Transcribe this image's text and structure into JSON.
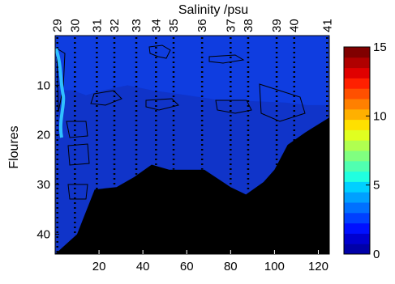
{
  "chart_data": {
    "type": "heatmap",
    "top_axis": {
      "label": "Salinity /psu",
      "ticks": [
        {
          "label": "29",
          "x": 1,
          "color": "#ff2020"
        },
        {
          "label": "30",
          "x": 9,
          "color": "#ff2020"
        },
        {
          "label": "31",
          "x": 19,
          "color": "#ff2020"
        },
        {
          "label": "32",
          "x": 27,
          "color": "#ff20ff"
        },
        {
          "label": "33",
          "x": 37,
          "color": "#ff20ff"
        },
        {
          "label": "34",
          "x": 46,
          "color": "#ff20ff"
        },
        {
          "label": "35",
          "x": 54,
          "color": "#20d020"
        },
        {
          "label": "36",
          "x": 67,
          "color": "#20d020"
        },
        {
          "label": "37",
          "x": 80,
          "color": "#20d020"
        },
        {
          "label": "38",
          "x": 88,
          "color": "#2020ff"
        },
        {
          "label": "39",
          "x": 101,
          "color": "#2020ff"
        },
        {
          "label": "40",
          "x": 109,
          "color": "#2020ff"
        },
        {
          "label": "41",
          "x": 124,
          "color": "#000000"
        }
      ]
    },
    "x_axis": {
      "label": "",
      "ticks": [
        20,
        40,
        60,
        80,
        100,
        120
      ],
      "range": [
        0,
        125
      ]
    },
    "y_axis": {
      "label": "Floures",
      "ticks": [
        10,
        20,
        30,
        40
      ],
      "range": [
        0,
        44
      ],
      "reversed": true
    },
    "colorbar": {
      "ticks": [
        0,
        5,
        10,
        15
      ],
      "range": [
        0,
        15
      ],
      "colors": [
        "#0000a8",
        "#0000d0",
        "#0010ff",
        "#0040ff",
        "#0070ff",
        "#00a0ff",
        "#00d0ff",
        "#20ffe0",
        "#50ffb0",
        "#80ff80",
        "#b0ff50",
        "#e0ff20",
        "#ffe000",
        "#ffb000",
        "#ff8000",
        "#ff5000",
        "#ff2000",
        "#e00000",
        "#b00000",
        "#800000"
      ]
    },
    "bottom_profile": [
      [
        0,
        44
      ],
      [
        5,
        42
      ],
      [
        10,
        40
      ],
      [
        18,
        31
      ],
      [
        28,
        30.5
      ],
      [
        36,
        28.5
      ],
      [
        44,
        26
      ],
      [
        52,
        27
      ],
      [
        68,
        27
      ],
      [
        80,
        30.5
      ],
      [
        87,
        32
      ],
      [
        95,
        29.5
      ],
      [
        100,
        27
      ],
      [
        106,
        22
      ],
      [
        114,
        19.5
      ],
      [
        125,
        16.5
      ]
    ],
    "upper_region_boundary": [
      [
        0,
        11
      ],
      [
        8,
        11
      ],
      [
        14,
        12
      ],
      [
        22,
        11
      ],
      [
        33,
        10
      ],
      [
        44,
        11
      ],
      [
        60,
        12
      ],
      [
        75,
        13
      ],
      [
        90,
        13.2
      ],
      [
        105,
        13.5
      ],
      [
        115,
        14
      ],
      [
        125,
        14
      ]
    ],
    "mid_region_boundary": [
      [
        10,
        17
      ],
      [
        14,
        20
      ],
      [
        15,
        28
      ],
      [
        17,
        31
      ]
    ],
    "station_casts": [
      {
        "x": 1,
        "bottom": 44
      },
      {
        "x": 9,
        "bottom": 40
      },
      {
        "x": 19,
        "bottom": 31
      },
      {
        "x": 27,
        "bottom": 30.5
      },
      {
        "x": 37,
        "bottom": 28
      },
      {
        "x": 46,
        "bottom": 26.5
      },
      {
        "x": 54,
        "bottom": 27
      },
      {
        "x": 67,
        "bottom": 27
      },
      {
        "x": 80,
        "bottom": 30.5
      },
      {
        "x": 88,
        "bottom": 31.5
      },
      {
        "x": 101,
        "bottom": 27
      },
      {
        "x": 109,
        "bottom": 21.5
      },
      {
        "x": 124,
        "bottom": 16.5
      }
    ],
    "grid": false
  }
}
